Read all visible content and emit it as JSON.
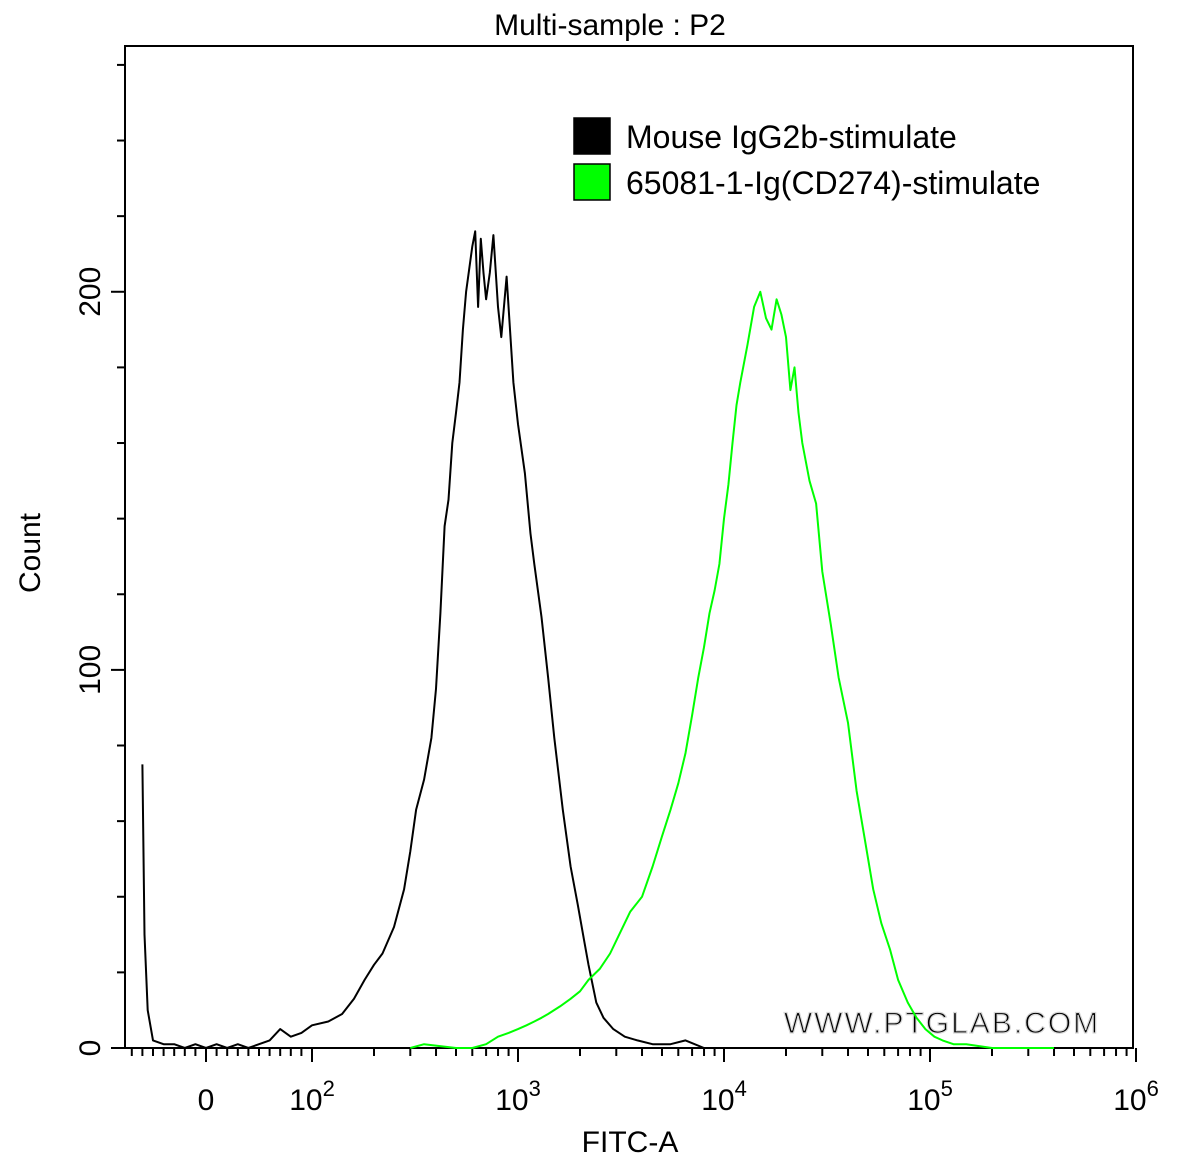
{
  "chart_data": {
    "type": "histogram-overlay",
    "title": "Multi-sample : P2",
    "xlabel": "FITC-A",
    "ylabel": "Count",
    "x_scale": "biexponential",
    "ylim": [
      0,
      265
    ],
    "yticks": [
      {
        "value": 0,
        "label": "0"
      },
      {
        "value": 100,
        "label": "100"
      },
      {
        "value": 200,
        "label": "200"
      }
    ],
    "xticks": [
      {
        "value": 0,
        "base": "0",
        "exp": ""
      },
      {
        "value": 100,
        "base": "10",
        "exp": "2"
      },
      {
        "value": 1000,
        "base": "10",
        "exp": "3"
      },
      {
        "value": 10000,
        "base": "10",
        "exp": "4"
      },
      {
        "value": 100000,
        "base": "10",
        "exp": "5"
      },
      {
        "value": 1000000,
        "base": "10",
        "exp": "6"
      }
    ],
    "legend_position": "top-right",
    "watermark": "WWW.PTGLAB.COM",
    "series": [
      {
        "name": "Mouse IgG2b-stimulate",
        "color": "#000000",
        "points": [
          [
            -60,
            75
          ],
          [
            -58,
            30
          ],
          [
            -55,
            10
          ],
          [
            -50,
            2
          ],
          [
            -40,
            1
          ],
          [
            -30,
            1
          ],
          [
            -20,
            0
          ],
          [
            -10,
            1
          ],
          [
            0,
            0
          ],
          [
            10,
            1
          ],
          [
            20,
            0
          ],
          [
            30,
            1
          ],
          [
            40,
            0
          ],
          [
            50,
            1
          ],
          [
            60,
            2
          ],
          [
            70,
            5
          ],
          [
            80,
            3
          ],
          [
            90,
            4
          ],
          [
            100,
            6
          ],
          [
            120,
            7
          ],
          [
            140,
            9
          ],
          [
            160,
            13
          ],
          [
            180,
            18
          ],
          [
            200,
            22
          ],
          [
            220,
            25
          ],
          [
            250,
            32
          ],
          [
            280,
            42
          ],
          [
            300,
            52
          ],
          [
            320,
            63
          ],
          [
            350,
            71
          ],
          [
            380,
            82
          ],
          [
            400,
            95
          ],
          [
            420,
            115
          ],
          [
            440,
            138
          ],
          [
            460,
            145
          ],
          [
            480,
            160
          ],
          [
            500,
            168
          ],
          [
            520,
            176
          ],
          [
            540,
            190
          ],
          [
            560,
            200
          ],
          [
            600,
            212
          ],
          [
            620,
            216
          ],
          [
            640,
            196
          ],
          [
            660,
            214
          ],
          [
            680,
            205
          ],
          [
            700,
            198
          ],
          [
            730,
            205
          ],
          [
            760,
            215
          ],
          [
            800,
            196
          ],
          [
            830,
            188
          ],
          [
            880,
            204
          ],
          [
            950,
            176
          ],
          [
            1000,
            165
          ],
          [
            1080,
            152
          ],
          [
            1150,
            136
          ],
          [
            1200,
            128
          ],
          [
            1300,
            114
          ],
          [
            1400,
            98
          ],
          [
            1500,
            82
          ],
          [
            1650,
            63
          ],
          [
            1800,
            48
          ],
          [
            1950,
            38
          ],
          [
            2100,
            28
          ],
          [
            2200,
            22
          ],
          [
            2400,
            12
          ],
          [
            2600,
            8
          ],
          [
            2900,
            5
          ],
          [
            3300,
            3
          ],
          [
            3800,
            2
          ],
          [
            4500,
            1
          ],
          [
            5500,
            1
          ],
          [
            6500,
            2
          ],
          [
            8000,
            0
          ],
          [
            20000,
            0
          ]
        ]
      },
      {
        "name": "65081-1-Ig(CD274)-stimulate",
        "color": "#00ff00",
        "points": [
          [
            300,
            0
          ],
          [
            350,
            1
          ],
          [
            500,
            0
          ],
          [
            600,
            0
          ],
          [
            700,
            1
          ],
          [
            800,
            3
          ],
          [
            900,
            4
          ],
          [
            1000,
            5
          ],
          [
            1100,
            6
          ],
          [
            1200,
            7
          ],
          [
            1300,
            8
          ],
          [
            1400,
            9
          ],
          [
            1600,
            11
          ],
          [
            1800,
            13
          ],
          [
            2000,
            15
          ],
          [
            2200,
            18
          ],
          [
            2500,
            21
          ],
          [
            2800,
            25
          ],
          [
            3100,
            30
          ],
          [
            3500,
            36
          ],
          [
            4000,
            40
          ],
          [
            4500,
            48
          ],
          [
            5000,
            56
          ],
          [
            5500,
            63
          ],
          [
            6000,
            70
          ],
          [
            6500,
            78
          ],
          [
            7000,
            88
          ],
          [
            7500,
            98
          ],
          [
            8000,
            106
          ],
          [
            8500,
            115
          ],
          [
            9000,
            121
          ],
          [
            9500,
            128
          ],
          [
            10000,
            140
          ],
          [
            10500,
            149
          ],
          [
            11000,
            160
          ],
          [
            11500,
            170
          ],
          [
            12000,
            176
          ],
          [
            13000,
            186
          ],
          [
            14000,
            196
          ],
          [
            15000,
            200
          ],
          [
            16000,
            193
          ],
          [
            17000,
            190
          ],
          [
            18000,
            198
          ],
          [
            19000,
            194
          ],
          [
            20000,
            188
          ],
          [
            21000,
            174
          ],
          [
            22000,
            180
          ],
          [
            23000,
            168
          ],
          [
            24000,
            160
          ],
          [
            26000,
            150
          ],
          [
            28000,
            144
          ],
          [
            30000,
            126
          ],
          [
            33000,
            112
          ],
          [
            36000,
            98
          ],
          [
            40000,
            86
          ],
          [
            44000,
            68
          ],
          [
            48000,
            56
          ],
          [
            53000,
            42
          ],
          [
            58000,
            33
          ],
          [
            64000,
            26
          ],
          [
            70000,
            18
          ],
          [
            78000,
            12
          ],
          [
            86000,
            8
          ],
          [
            95000,
            5
          ],
          [
            105000,
            3
          ],
          [
            115000,
            2
          ],
          [
            130000,
            1
          ],
          [
            150000,
            1
          ],
          [
            200000,
            0
          ],
          [
            400000,
            0
          ]
        ]
      }
    ]
  }
}
